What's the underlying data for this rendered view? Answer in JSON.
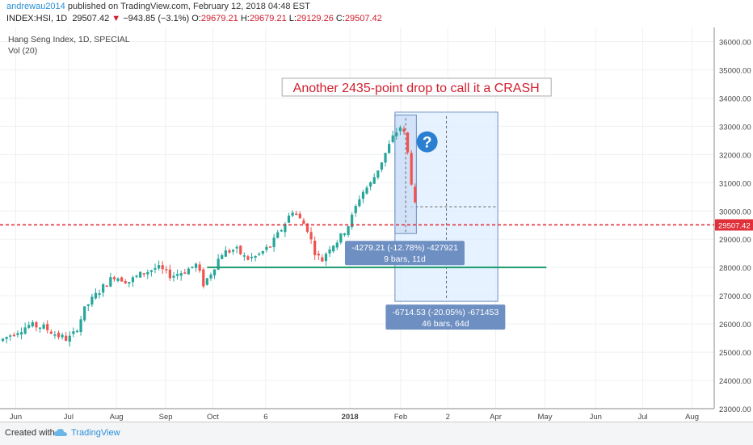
{
  "header": {
    "user": "andrewau2014",
    "published": "published on TradingView.com, February 12, 2018 04:48 EST",
    "symbol": "INDEX:HSI, 1D",
    "last": "29507.42",
    "arrow": "▼",
    "change": "−943.85 (−3.1%)",
    "o_label": "O:",
    "o": "29679.21",
    "h_label": "H:",
    "h": "29679.21",
    "l_label": "L:",
    "l": "29129.26",
    "c_label": "C:",
    "c": "29507.42"
  },
  "chart_data": {
    "type": "candlestick",
    "legend_title": "Hang Seng Index, 1D, SPECIAL",
    "legend_vol": "Vol (20)",
    "ylim": [
      23000,
      36500
    ],
    "y_ticks": [
      "23000.00",
      "24000.00",
      "25000.00",
      "26000.00",
      "27000.00",
      "28000.00",
      "29000.00",
      "30000.00",
      "31000.00",
      "32000.00",
      "33000.00",
      "34000.00",
      "35000.00",
      "36000.00"
    ],
    "x_ticks": [
      {
        "label": "Jun",
        "pos": 0.022
      },
      {
        "label": "Jul",
        "pos": 0.096
      },
      {
        "label": "Aug",
        "pos": 0.163
      },
      {
        "label": "Sep",
        "pos": 0.232
      },
      {
        "label": "Oct",
        "pos": 0.298
      },
      {
        "label": "6",
        "pos": 0.372
      },
      {
        "label": "2018",
        "pos": 0.49,
        "bold": true
      },
      {
        "label": "Feb",
        "pos": 0.561
      },
      {
        "label": "2",
        "pos": 0.627
      },
      {
        "label": "Apr",
        "pos": 0.694
      },
      {
        "label": "May",
        "pos": 0.763
      },
      {
        "label": "Jun",
        "pos": 0.834
      },
      {
        "label": "Jul",
        "pos": 0.9
      },
      {
        "label": "Aug",
        "pos": 0.969
      }
    ],
    "price_path": [
      [
        0.0,
        25400
      ],
      [
        0.02,
        25700
      ],
      [
        0.04,
        25950
      ],
      [
        0.06,
        25900
      ],
      [
        0.08,
        25600
      ],
      [
        0.095,
        25450
      ],
      [
        0.105,
        25700
      ],
      [
        0.12,
        26600
      ],
      [
        0.14,
        27200
      ],
      [
        0.16,
        27700
      ],
      [
        0.18,
        27500
      ],
      [
        0.2,
        27800
      ],
      [
        0.22,
        28000
      ],
      [
        0.24,
        27700
      ],
      [
        0.26,
        27900
      ],
      [
        0.275,
        28100
      ],
      [
        0.285,
        27400
      ],
      [
        0.295,
        27800
      ],
      [
        0.31,
        28500
      ],
      [
        0.33,
        28650
      ],
      [
        0.345,
        28300
      ],
      [
        0.36,
        28400
      ],
      [
        0.38,
        28800
      ],
      [
        0.395,
        29400
      ],
      [
        0.41,
        30050
      ],
      [
        0.42,
        29700
      ],
      [
        0.43,
        29400
      ],
      [
        0.44,
        28600
      ],
      [
        0.45,
        28200
      ],
      [
        0.46,
        28700
      ],
      [
        0.475,
        29000
      ],
      [
        0.49,
        29600
      ],
      [
        0.505,
        30600
      ],
      [
        0.52,
        31000
      ],
      [
        0.535,
        31800
      ],
      [
        0.55,
        32600
      ],
      [
        0.56,
        33000
      ],
      [
        0.565,
        32800
      ],
      [
        0.57,
        32200
      ],
      [
        0.575,
        31200
      ],
      [
        0.58,
        30400
      ],
      [
        0.585,
        29507
      ]
    ],
    "last_price": "29507.42",
    "hline_green": 28000,
    "annotation": "Another 2435-point drop to call it a CRASH",
    "measure_small": {
      "line1": "-4279.21 (-12.78%) -427921",
      "line2": "9 bars, 11d",
      "top": 33400,
      "bottom": 29200
    },
    "measure_large": {
      "line1": "-6714.53 (-20.05%) -671453",
      "line2": "46 bars, 64d",
      "top": 33500,
      "bottom": 26800
    },
    "question_mark": "?",
    "colors": {
      "up": "#26a69a",
      "down": "#ef5350",
      "green_line": "#1e9b6e",
      "red_line": "#e0303a",
      "box": "#ddeeff",
      "label": "#6e8fc2",
      "question": "#2a7fd0"
    }
  },
  "footer": {
    "created": "Created with",
    "brand": "TradingView"
  }
}
